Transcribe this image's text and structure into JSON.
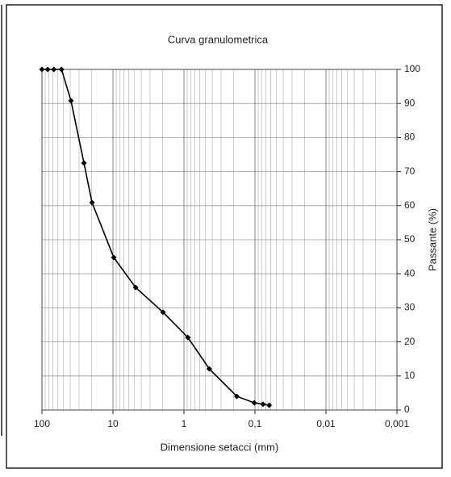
{
  "chart_data": {
    "type": "line",
    "title": "Curva granulometrica",
    "x_label": "Dimensione setacci (mm)",
    "y_label": "Passante (%)",
    "x": [
      100,
      83,
      68,
      53,
      39,
      25.6,
      19.7,
      9.75,
      4.8,
      1.97,
      0.88,
      0.44,
      0.18,
      0.102,
      0.077,
      0.063
    ],
    "series": [
      {
        "color": "#000000",
        "values": [
          100,
          100,
          100,
          100,
          90.8,
          72.5,
          60.9,
          44.8,
          36,
          28.7,
          21.3,
          12.1,
          4,
          2.1,
          1.7,
          1.4
        ]
      }
    ],
    "xlim": [
      100,
      0.001
    ],
    "xticks": [
      100,
      10,
      1,
      {
        "value": 0.1,
        "label": "0,1"
      },
      {
        "value": 0.01,
        "label": "0,01"
      },
      {
        "value": 0.001,
        "label": "0,001"
      }
    ],
    "x_log": true,
    "minor_grid": true,
    "ylim": [
      0,
      100
    ],
    "yticks": [
      0,
      10,
      20,
      30,
      40,
      50,
      60,
      70,
      80,
      90,
      100
    ],
    "y_axis_side": "right",
    "grid": true
  }
}
